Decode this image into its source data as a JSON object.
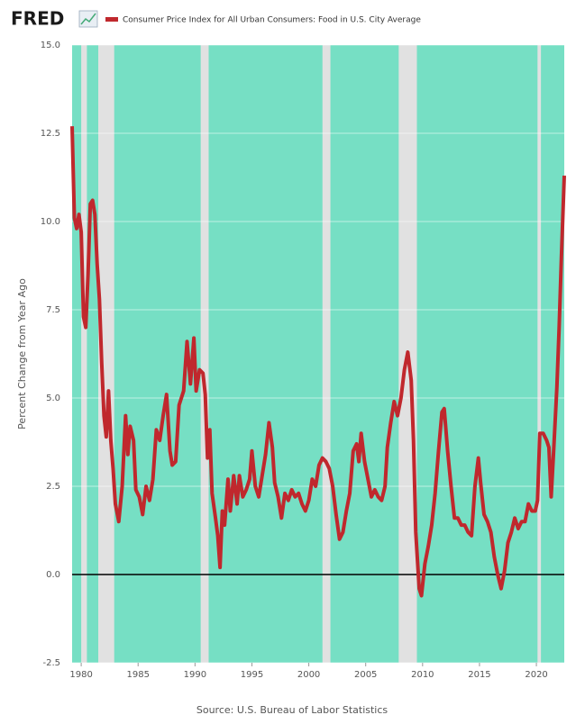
{
  "logo": "FRED",
  "chart_data": {
    "type": "line",
    "title": "Consumer Price Index for All Urban Consumers: Food in U.S. City Average",
    "y_label": "Percent Change from Year Ago",
    "source": "Source: U.S. Bureau of Labor Statistics",
    "xlim": [
      1979.2,
      2022.45
    ],
    "xticks": [
      1980,
      1985,
      1990,
      1995,
      2000,
      2005,
      2010,
      2015,
      2020
    ],
    "ylim": [
      -2.5,
      15
    ],
    "yticks": [
      {
        "value": -2.5,
        "label": "-2.5"
      },
      {
        "value": 0,
        "label": "0.0"
      },
      {
        "value": 2.5,
        "label": "2.5"
      },
      {
        "value": 5,
        "label": "5.0"
      },
      {
        "value": 7.5,
        "label": "7.5"
      },
      {
        "value": 10,
        "label": "10.0"
      },
      {
        "value": 12.5,
        "label": "12.5"
      },
      {
        "value": 15,
        "label": "15.0"
      }
    ],
    "grid": true,
    "recessions": [
      [
        1980.0,
        1980.5
      ],
      [
        1981.5,
        1982.9
      ],
      [
        1990.5,
        1991.2
      ],
      [
        2001.2,
        2001.9
      ],
      [
        2007.9,
        2009.5
      ],
      [
        2020.1,
        2020.4
      ]
    ],
    "x": [
      1979.2,
      1979.4,
      1979.6,
      1979.8,
      1980.0,
      1980.2,
      1980.4,
      1980.6,
      1980.8,
      1981.0,
      1981.2,
      1981.4,
      1981.6,
      1981.8,
      1982.0,
      1982.2,
      1982.4,
      1982.6,
      1982.8,
      1983.0,
      1983.3,
      1983.6,
      1983.9,
      1984.1,
      1984.3,
      1984.6,
      1984.8,
      1985.1,
      1985.4,
      1985.7,
      1986.0,
      1986.3,
      1986.6,
      1986.9,
      1987.2,
      1987.5,
      1987.8,
      1988.0,
      1988.3,
      1988.6,
      1989.0,
      1989.3,
      1989.6,
      1989.9,
      1990.1,
      1990.4,
      1990.7,
      1990.9,
      1991.1,
      1991.3,
      1991.5,
      1991.8,
      1992.0,
      1992.2,
      1992.4,
      1992.6,
      1992.9,
      1993.1,
      1993.4,
      1993.7,
      1993.9,
      1994.2,
      1994.5,
      1994.8,
      1995.0,
      1995.3,
      1995.6,
      1995.9,
      1996.2,
      1996.5,
      1996.8,
      1997.0,
      1997.3,
      1997.6,
      1997.9,
      1998.2,
      1998.5,
      1998.8,
      1999.1,
      1999.4,
      1999.7,
      2000.0,
      2000.3,
      2000.6,
      2000.9,
      2001.2,
      2001.5,
      2001.8,
      2002.1,
      2002.4,
      2002.7,
      2003.0,
      2003.3,
      2003.6,
      2003.9,
      2004.2,
      2004.4,
      2004.6,
      2004.9,
      2005.2,
      2005.5,
      2005.8,
      2006.1,
      2006.4,
      2006.7,
      2006.9,
      2007.2,
      2007.5,
      2007.8,
      2008.1,
      2008.4,
      2008.7,
      2009.0,
      2009.2,
      2009.4,
      2009.7,
      2009.9,
      2010.2,
      2010.5,
      2010.8,
      2011.1,
      2011.4,
      2011.7,
      2011.9,
      2012.2,
      2012.5,
      2012.8,
      2013.1,
      2013.4,
      2013.7,
      2014.0,
      2014.3,
      2014.6,
      2014.9,
      2015.1,
      2015.4,
      2015.7,
      2016.0,
      2016.3,
      2016.6,
      2016.9,
      2017.2,
      2017.5,
      2017.8,
      2018.1,
      2018.4,
      2018.7,
      2019.0,
      2019.3,
      2019.6,
      2019.9,
      2020.1,
      2020.3,
      2020.6,
      2020.9,
      2021.1,
      2021.3,
      2021.5,
      2021.8,
      2022.0,
      2022.2,
      2022.45
    ],
    "series": [
      {
        "name": "Consumer Price Index for All Urban Consumers: Food in U.S. City Average",
        "color": "#c0282d",
        "values": [
          12.7,
          10.1,
          9.8,
          10.2,
          9.7,
          7.3,
          7.0,
          8.5,
          10.5,
          10.6,
          10.2,
          8.8,
          7.8,
          6.0,
          4.5,
          3.9,
          5.2,
          3.8,
          3.0,
          2.0,
          1.5,
          2.5,
          4.5,
          3.4,
          4.2,
          3.8,
          2.4,
          2.2,
          1.7,
          2.5,
          2.1,
          2.7,
          4.1,
          3.8,
          4.5,
          5.1,
          3.5,
          3.1,
          3.2,
          4.8,
          5.2,
          6.6,
          5.4,
          6.7,
          5.2,
          5.8,
          5.7,
          5.1,
          3.3,
          4.1,
          2.3,
          1.6,
          1.1,
          0.2,
          1.8,
          1.4,
          2.7,
          1.8,
          2.8,
          2.0,
          2.8,
          2.2,
          2.4,
          2.7,
          3.5,
          2.5,
          2.2,
          2.8,
          3.4,
          4.3,
          3.6,
          2.6,
          2.2,
          1.6,
          2.3,
          2.1,
          2.4,
          2.2,
          2.3,
          2.0,
          1.8,
          2.1,
          2.7,
          2.5,
          3.1,
          3.3,
          3.2,
          3.0,
          2.5,
          1.7,
          1.0,
          1.2,
          1.8,
          2.3,
          3.5,
          3.7,
          3.2,
          4.0,
          3.2,
          2.7,
          2.2,
          2.4,
          2.2,
          2.1,
          2.5,
          3.6,
          4.3,
          4.9,
          4.5,
          5.0,
          5.8,
          6.3,
          5.5,
          3.8,
          1.2,
          -0.4,
          -0.6,
          0.3,
          0.8,
          1.4,
          2.3,
          3.5,
          4.6,
          4.7,
          3.5,
          2.5,
          1.6,
          1.6,
          1.4,
          1.4,
          1.2,
          1.1,
          2.5,
          3.3,
          2.6,
          1.7,
          1.5,
          1.2,
          0.5,
          0.0,
          -0.4,
          0.1,
          0.9,
          1.2,
          1.6,
          1.3,
          1.5,
          1.5,
          2.0,
          1.8,
          1.8,
          2.1,
          4.0,
          4.0,
          3.8,
          3.6,
          2.2,
          3.4,
          5.3,
          7.0,
          9.0,
          11.3
        ]
      }
    ]
  }
}
